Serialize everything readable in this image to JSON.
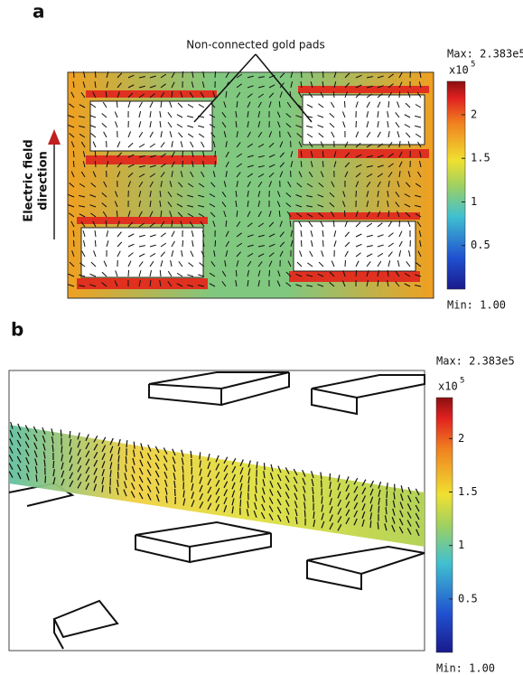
{
  "panels": [
    {
      "label": "a",
      "annotation": "Non-connected gold pads",
      "side_label": [
        "Electric field",
        "direction"
      ],
      "colorbar": {
        "max_label": "Max: 2.383e5",
        "min_label": "Min: 1.00",
        "multiplier": "x10",
        "exponent": "5",
        "lim": [
          1e-05,
          2.383
        ],
        "ticks": [
          0.5,
          1,
          1.5,
          2
        ]
      }
    },
    {
      "label": "b",
      "colorbar": {
        "max_label": "Max: 2.383e5",
        "min_label": "Min: 1.00",
        "multiplier": "x10",
        "exponent": "5",
        "lim": [
          1e-05,
          2.383
        ],
        "ticks": [
          0.5,
          1,
          1.5,
          2
        ]
      }
    }
  ]
}
